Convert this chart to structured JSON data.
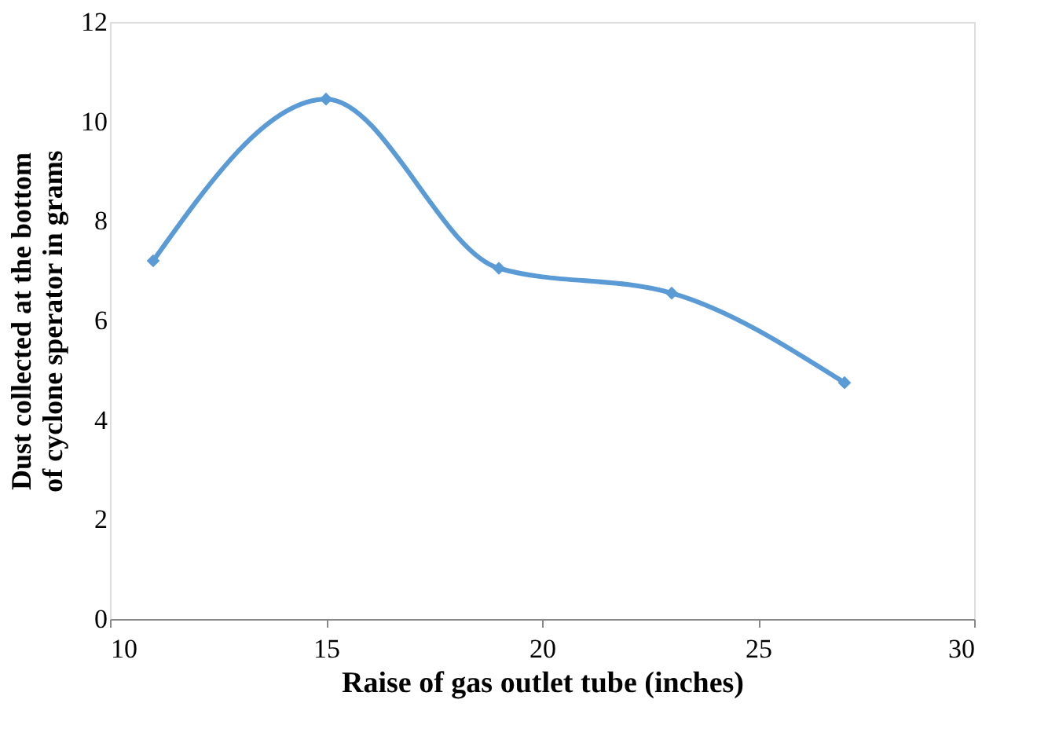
{
  "chart_data": {
    "type": "line",
    "xlabel": "Raise of gas outlet tube (inches)",
    "ylabel": "Dust collected at the bottom of cyclone sperator in grams",
    "x": [
      11,
      15,
      19,
      23,
      27
    ],
    "series": [
      {
        "color": "#5b9bd5",
        "values": [
          7.2,
          10.45,
          7.05,
          6.55,
          4.75
        ]
      }
    ],
    "xlim": [
      10,
      30
    ],
    "xticks": [
      10,
      15,
      20,
      25,
      30
    ],
    "ylim": [
      0,
      12
    ],
    "yticks": [
      0,
      2,
      4,
      6,
      8,
      10,
      12
    ],
    "grid": false,
    "marker": "diamond",
    "line_style": "solid"
  }
}
